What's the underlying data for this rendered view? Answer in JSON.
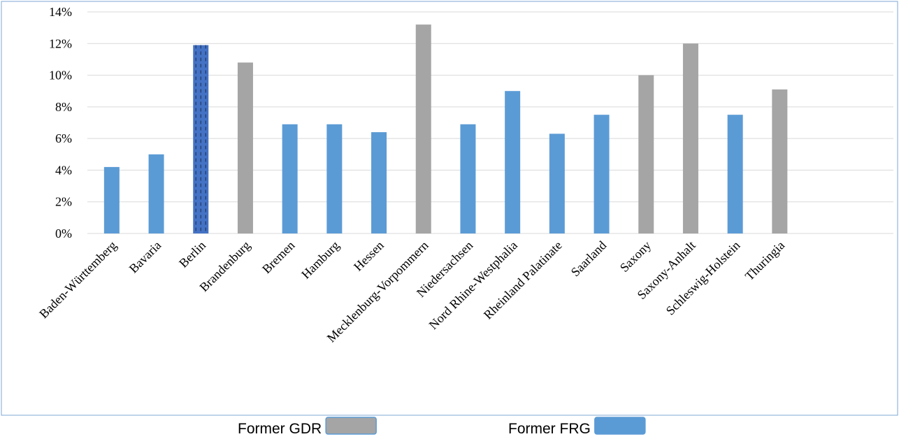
{
  "chart_data": {
    "type": "bar",
    "categories": [
      "Baden-Württemberg",
      "Bavaria",
      "Berlin",
      "Brandenburg",
      "Bremen",
      "Hamburg",
      "Hessen",
      "Mecklenburg-Vorpommern",
      "Niedersachsen",
      "Nord Rhine-Westphalia",
      "Rheinland Palatinate",
      "Saarland",
      "Saxony",
      "Saxony-Anhalt",
      "Schleswig-Holstein",
      "Thuringia"
    ],
    "values": [
      4.2,
      5.0,
      11.9,
      10.8,
      6.9,
      6.9,
      6.4,
      13.2,
      6.9,
      9.0,
      6.3,
      7.5,
      10.0,
      12.0,
      7.5,
      9.1
    ],
    "colors": [
      "#5b9bd5",
      "#5b9bd5",
      "#4472c4",
      "#a5a5a5",
      "#5b9bd5",
      "#5b9bd5",
      "#5b9bd5",
      "#a5a5a5",
      "#5b9bd5",
      "#5b9bd5",
      "#5b9bd5",
      "#5b9bd5",
      "#a5a5a5",
      "#a5a5a5",
      "#5b9bd5",
      "#a5a5a5"
    ],
    "patterns": [
      null,
      null,
      "dashed",
      null,
      null,
      null,
      null,
      null,
      null,
      null,
      null,
      null,
      null,
      null,
      null,
      null
    ],
    "ylim": [
      0,
      14
    ],
    "yticks": [
      {
        "value": 0,
        "label": "0%"
      },
      {
        "value": 2,
        "label": "2%"
      },
      {
        "value": 4,
        "label": "4%"
      },
      {
        "value": 6,
        "label": "6%"
      },
      {
        "value": 8,
        "label": "8%"
      },
      {
        "value": 10,
        "label": "10%"
      },
      {
        "value": 12,
        "label": "12%"
      },
      {
        "value": 14,
        "label": "14%"
      }
    ],
    "grid": true,
    "legend": [
      {
        "name": "Former GDR",
        "color": "#a5a5a5"
      },
      {
        "name": "Former FRG",
        "color": "#5b9bd5"
      }
    ]
  }
}
